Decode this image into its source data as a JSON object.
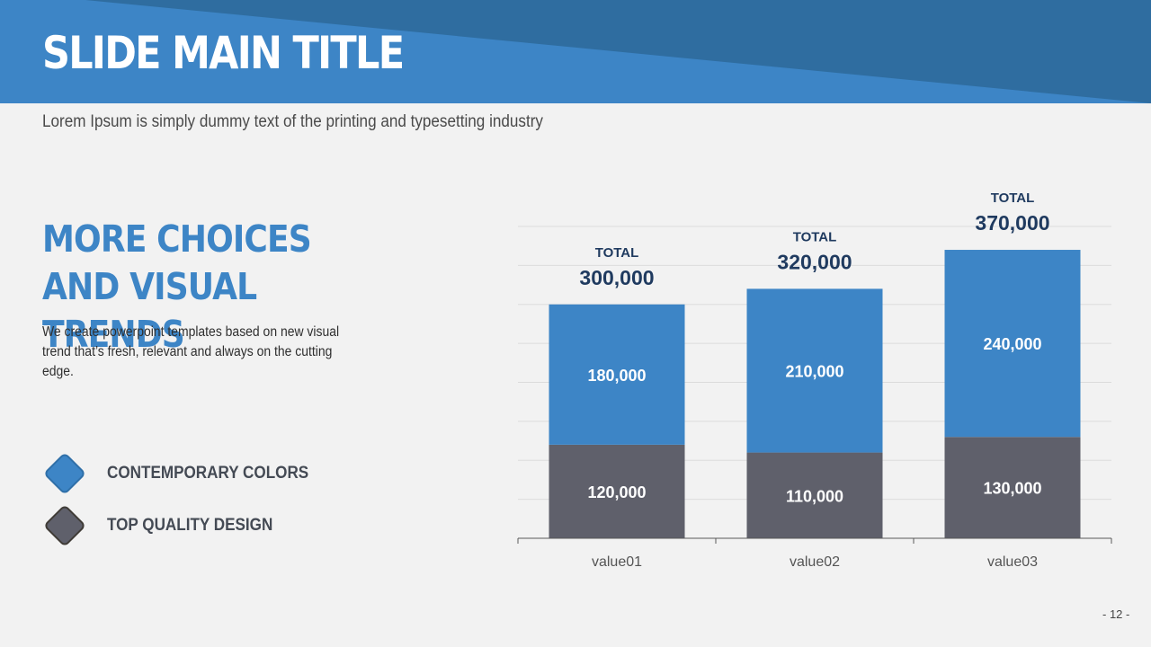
{
  "slide": {
    "title": "SLIDE MAIN TITLE",
    "subtitle": "Lorem Ipsum is simply dummy text of the printing and typesetting industry",
    "page_number": "- 12 -"
  },
  "content": {
    "heading": "MORE CHOICES AND VISUAL TRENDS",
    "body": "We create powerpoint templates based on new visual trend that’s fresh, relevant and always on the cutting edge."
  },
  "legend": [
    {
      "label": "CONTEMPORARY COLORS",
      "color": "#3d85c6",
      "border": "#2f6fa8"
    },
    {
      "label": "TOP QUALITY DESIGN",
      "color": "#5f606b",
      "border": "#3f3b36"
    }
  ],
  "colors": {
    "header_dark": "#2f6da0",
    "header_light": "#3d85c6",
    "bar_top": "#3d85c6",
    "bar_bottom": "#5f606b",
    "total_text": "#1f3a5f"
  },
  "chart_data": {
    "type": "bar",
    "stacked": true,
    "categories": [
      "value01",
      "value02",
      "value03"
    ],
    "series": [
      {
        "values": [
          120000,
          110000,
          130000
        ]
      },
      {
        "values": [
          180000,
          210000,
          240000
        ]
      }
    ],
    "segment_labels": [
      [
        "120,000",
        "110,000",
        "130,000"
      ],
      [
        "180,000",
        "210,000",
        "240,000"
      ]
    ],
    "totals_caption": "TOTAL",
    "totals": [
      "300,000",
      "320,000",
      "370,000"
    ],
    "ylim": [
      0,
      400000
    ],
    "grid": true
  }
}
